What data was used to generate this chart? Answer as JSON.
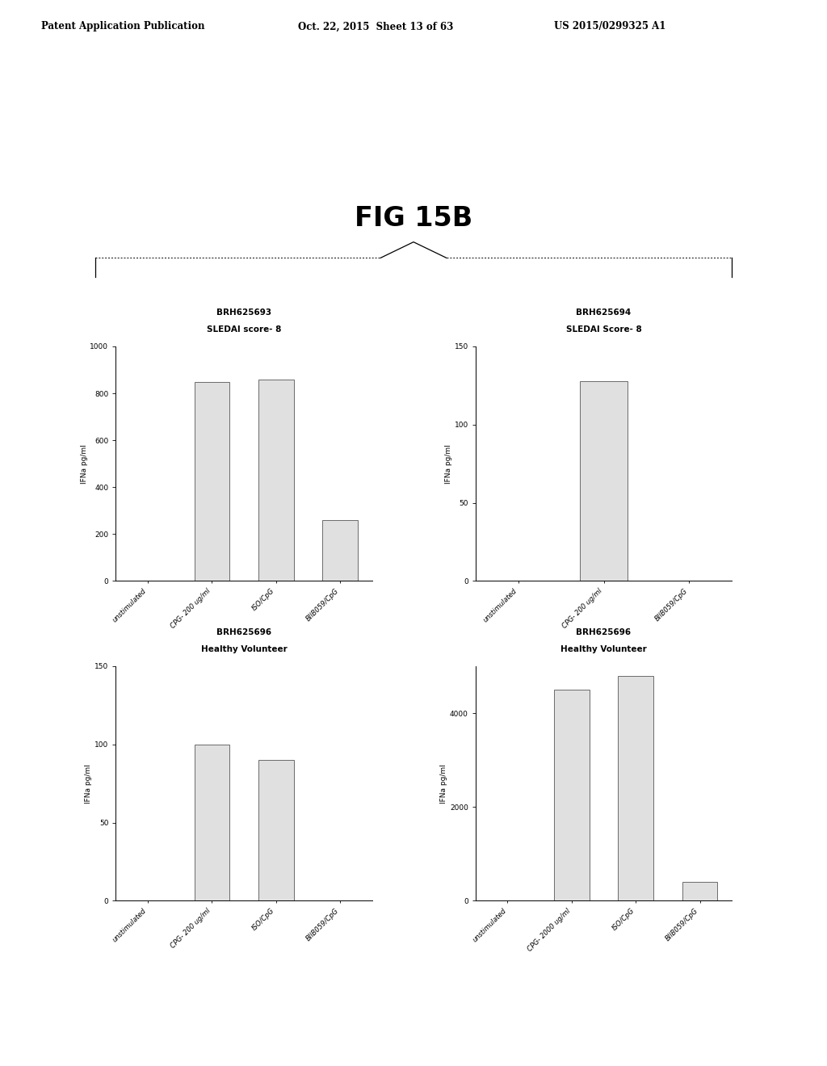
{
  "header_left": "Patent Application Publication",
  "header_mid": "Oct. 22, 2015  Sheet 13 of 63",
  "header_right": "US 2015/0299325 A1",
  "figure_title": "FIG 15B",
  "charts": [
    {
      "title_line1": "BRH625693",
      "title_line2": "SLEDAI score- 8",
      "ylabel": "IFNa pg/ml",
      "ylim": [
        0,
        1000
      ],
      "yticks": [
        0,
        200,
        400,
        600,
        800,
        1000
      ],
      "categories": [
        "unstimulated",
        "CPG- 200 ug/ml",
        "ISO/CpG",
        "BIlB059/CpG"
      ],
      "values": [
        0,
        850,
        860,
        260
      ],
      "position": "top_left"
    },
    {
      "title_line1": "BRH625694",
      "title_line2": "SLEDAI Score- 8",
      "ylabel": "IFNa pg/ml",
      "ylim": [
        0,
        150
      ],
      "yticks": [
        0,
        50,
        100,
        150
      ],
      "categories": [
        "unstimulated",
        "CPG- 200 ug/ml",
        "BIlB059/CpG"
      ],
      "values": [
        0,
        128,
        0
      ],
      "position": "top_right"
    },
    {
      "title_line1": "BRH625696",
      "title_line2": "Healthy Volunteer",
      "ylabel": "IFNa pg/ml",
      "ylim": [
        0,
        150
      ],
      "yticks": [
        0,
        50,
        100,
        150
      ],
      "categories": [
        "unstimulated",
        "CPG- 200 ug/ml",
        "ISO/CpG",
        "BIlB059/CpG"
      ],
      "values": [
        0,
        100,
        90,
        0
      ],
      "position": "bottom_left"
    },
    {
      "title_line1": "BRH625696",
      "title_line2": "Healthy Volunteer",
      "ylabel": "IFNa pg/ml",
      "ylim": [
        0,
        5000
      ],
      "yticks": [
        0,
        2000,
        4000
      ],
      "categories": [
        "unstimulated",
        "CPG- 2000 ug/ml",
        "ISO/CpG",
        "BIlB059/CpG"
      ],
      "values": [
        0,
        4500,
        4800,
        400
      ],
      "position": "bottom_right"
    }
  ],
  "bar_color": "#e0e0e0",
  "bar_edge_color": "#555555",
  "background_color": "#ffffff"
}
